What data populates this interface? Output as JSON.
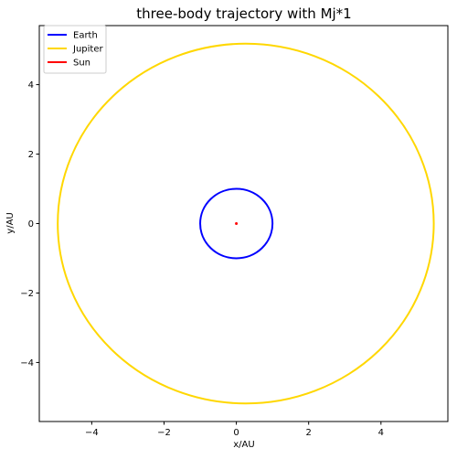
{
  "chart_data": {
    "type": "line",
    "title": "three-body trajectory with Mj*1",
    "xlabel": "x/AU",
    "ylabel": "y/AU",
    "xlim": [
      -5.45,
      5.85
    ],
    "ylim": [
      -5.7,
      5.7
    ],
    "xticks": [
      -4,
      -2,
      0,
      2,
      4
    ],
    "yticks": [
      -4,
      -2,
      0,
      2,
      4
    ],
    "grid": false,
    "legend_position": "top-left",
    "series": [
      {
        "name": "Earth",
        "color": "#0000ff",
        "shape": "ellipse",
        "center": [
          0.0,
          0.0
        ],
        "radii": [
          1.0,
          1.0
        ]
      },
      {
        "name": "Jupiter",
        "color": "#ffd700",
        "shape": "ellipse",
        "center": [
          0.26,
          0.0
        ],
        "radii": [
          5.2,
          5.18
        ]
      },
      {
        "name": "Sun",
        "color": "#ff0000",
        "shape": "ellipse",
        "center": [
          0.0,
          0.0
        ],
        "radii": [
          0.02,
          0.02
        ]
      }
    ]
  }
}
